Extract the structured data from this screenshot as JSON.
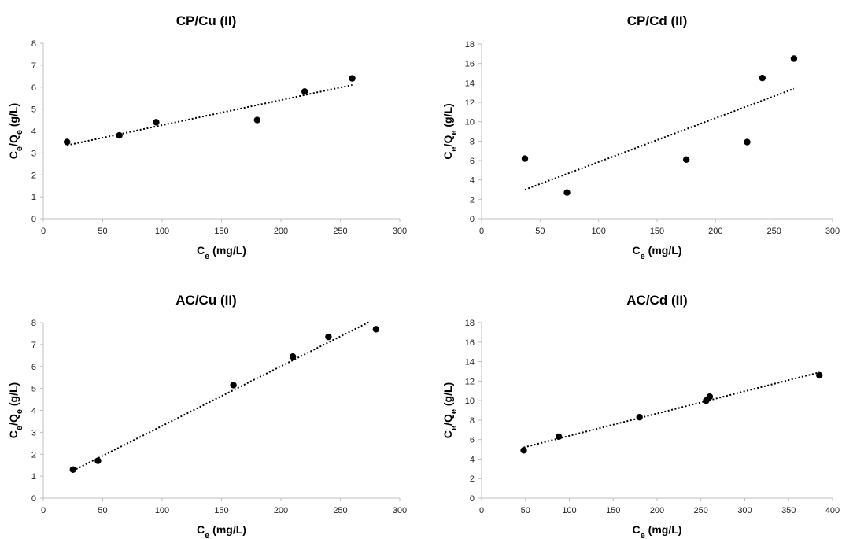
{
  "chart_data": [
    {
      "type": "scatter",
      "title": "CP/Cu (II)",
      "xlabel": "Ce (mg/L)",
      "ylabel": "Ce/Qe (g/L)",
      "xlim": [
        0,
        300
      ],
      "ylim": [
        0,
        8
      ],
      "xticks": [
        0,
        50,
        100,
        150,
        200,
        250,
        300
      ],
      "yticks": [
        0,
        1,
        2,
        3,
        4,
        5,
        6,
        7,
        8
      ],
      "points": [
        [
          20,
          3.5
        ],
        [
          64,
          3.8
        ],
        [
          95,
          4.4
        ],
        [
          180,
          4.5
        ],
        [
          220,
          5.8
        ],
        [
          260,
          6.4
        ]
      ],
      "trendline": [
        [
          20,
          3.35
        ],
        [
          260,
          6.1
        ]
      ],
      "grid": false,
      "legend": "none"
    },
    {
      "type": "scatter",
      "title": "CP/Cd (II)",
      "xlabel": "Ce (mg/L)",
      "ylabel": "Ce/Qe (g/L)",
      "xlim": [
        0,
        300
      ],
      "ylim": [
        0,
        18
      ],
      "xticks": [
        0,
        50,
        100,
        150,
        200,
        250,
        300
      ],
      "yticks": [
        0,
        2,
        4,
        6,
        8,
        10,
        12,
        14,
        16,
        18
      ],
      "points": [
        [
          37,
          6.2
        ],
        [
          73,
          2.7
        ],
        [
          175,
          6.1
        ],
        [
          227,
          7.9
        ],
        [
          240,
          14.5
        ],
        [
          267,
          16.5
        ]
      ],
      "trendline": [
        [
          37,
          3.0
        ],
        [
          267,
          13.4
        ]
      ],
      "grid": false,
      "legend": "none"
    },
    {
      "type": "scatter",
      "title": "AC/Cu (II)",
      "xlabel": "Ce (mg/L)",
      "ylabel": "Ce/Qe (g/L)",
      "xlim": [
        0,
        300
      ],
      "ylim": [
        0,
        8
      ],
      "xticks": [
        0,
        50,
        100,
        150,
        200,
        250,
        300
      ],
      "yticks": [
        0,
        1,
        2,
        3,
        4,
        5,
        6,
        7,
        8
      ],
      "points": [
        [
          25,
          1.3
        ],
        [
          46,
          1.7
        ],
        [
          160,
          5.15
        ],
        [
          210,
          6.45
        ],
        [
          240,
          7.35
        ],
        [
          280,
          7.7
        ]
      ],
      "trendline": [
        [
          25,
          1.25
        ],
        [
          275,
          8.05
        ]
      ],
      "grid": false,
      "legend": "none"
    },
    {
      "type": "scatter",
      "title": "AC/Cd (II)",
      "xlabel": "Ce (mg/L)",
      "ylabel": "Ce/Qe (g/L)",
      "xlim": [
        0,
        400
      ],
      "ylim": [
        0,
        18
      ],
      "xticks": [
        0,
        50,
        100,
        150,
        200,
        250,
        300,
        350,
        400
      ],
      "yticks": [
        0,
        2,
        4,
        6,
        8,
        10,
        12,
        14,
        16,
        18
      ],
      "points": [
        [
          48,
          4.9
        ],
        [
          88,
          6.3
        ],
        [
          180,
          8.3
        ],
        [
          256,
          10.0
        ],
        [
          260,
          10.4
        ],
        [
          385,
          12.6
        ]
      ],
      "trendline": [
        [
          48,
          5.2
        ],
        [
          385,
          12.9
        ]
      ],
      "grid": false,
      "legend": "none"
    }
  ]
}
